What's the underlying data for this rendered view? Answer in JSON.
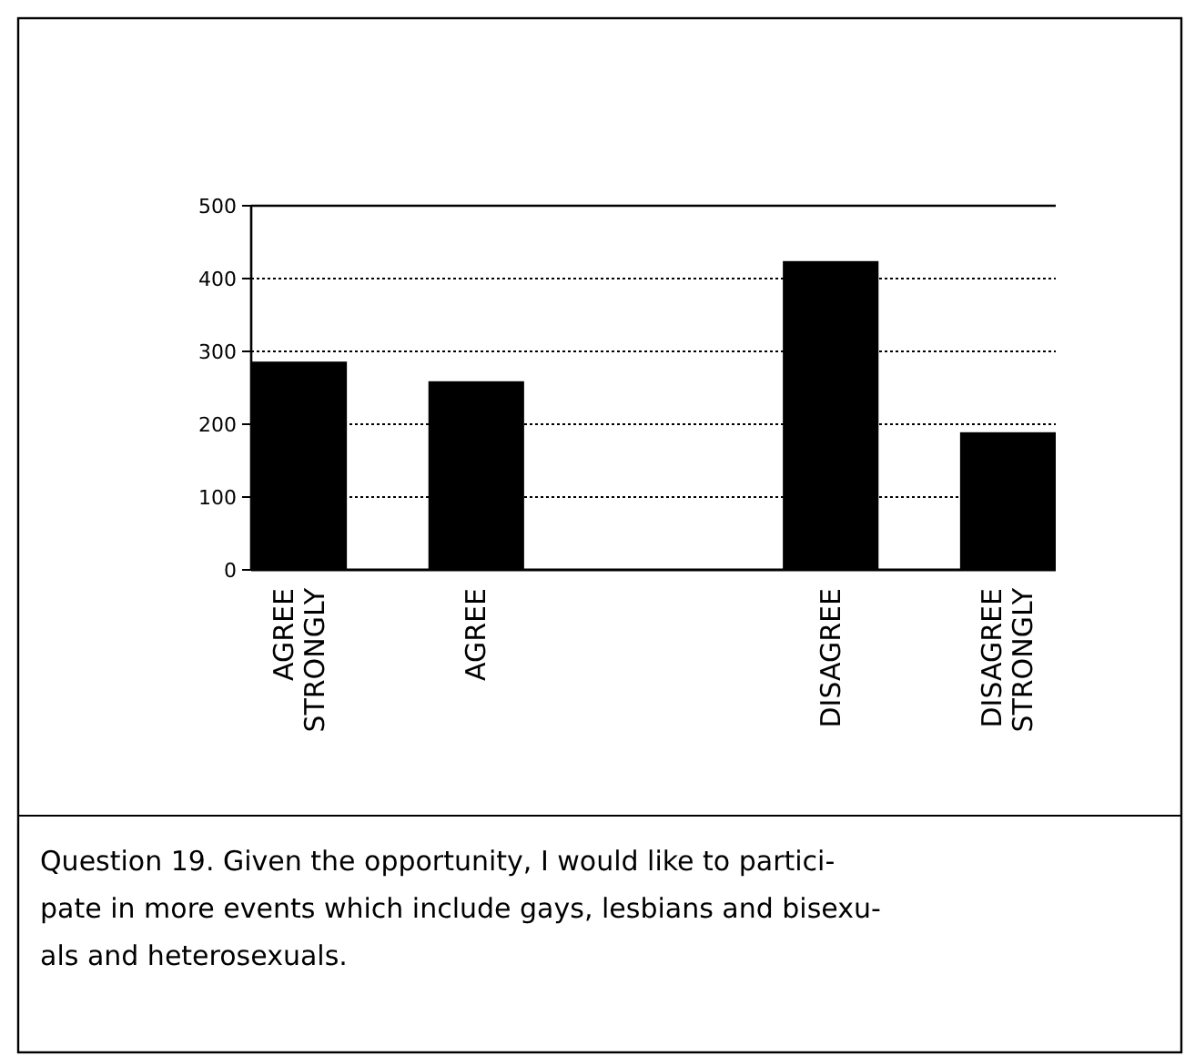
{
  "chart_data": {
    "type": "bar",
    "categories": [
      "AGREE STRONGLY",
      "AGREE",
      null,
      "DISAGREE",
      "DISAGREE STRONGLY"
    ],
    "values": [
      286,
      259,
      null,
      424,
      189
    ],
    "color": "#000000",
    "ylim": [
      0,
      500
    ],
    "yticks": [
      0,
      100,
      200,
      300,
      400,
      500
    ],
    "grid": "y",
    "annotations": [
      "Question 19.  Given the opportunity, I would like to partici- pate in more events which include gays, lesbians and bisexu- als and heterosexuals."
    ]
  }
}
